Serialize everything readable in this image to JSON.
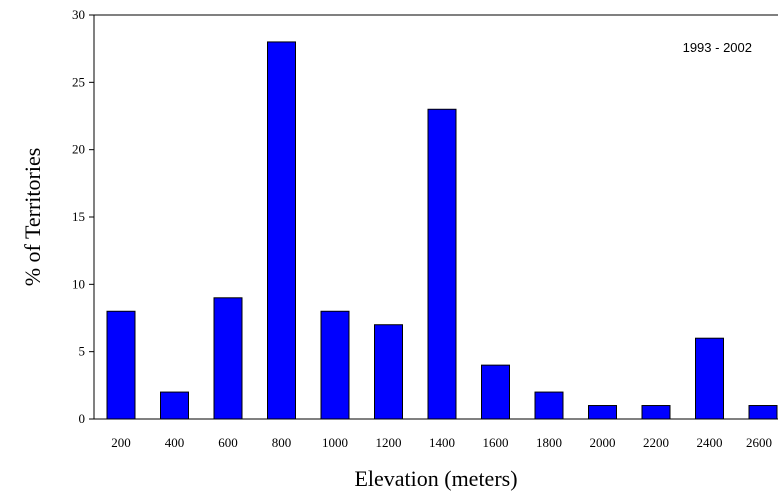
{
  "chart_data": {
    "type": "bar",
    "categories": [
      "200",
      "400",
      "600",
      "800",
      "1000",
      "1200",
      "1400",
      "1600",
      "1800",
      "2000",
      "2200",
      "2400",
      "2600"
    ],
    "values": [
      8,
      2,
      9,
      28,
      8,
      7,
      23,
      4,
      2,
      1,
      1,
      6,
      1
    ],
    "xlabel": "Elevation (meters)",
    "ylabel": "% of Territories",
    "ylim": [
      0,
      30
    ],
    "yticks": [
      0,
      5,
      10,
      15,
      20,
      25,
      30
    ],
    "annotation": "1993 - 2002",
    "bar_color": "#0000ff",
    "bar_edge_color": "#000000",
    "grid": false
  }
}
